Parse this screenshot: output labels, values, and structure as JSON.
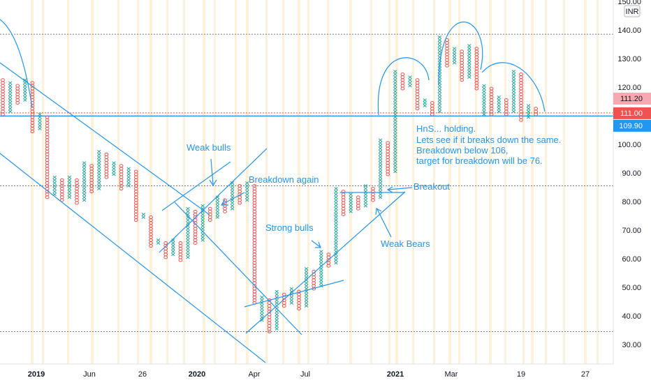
{
  "chart_data": {
    "type": "point-and-figure",
    "currency": "INR",
    "y_axis": {
      "ylim": [
        25,
        153
      ],
      "ticks": [
        30,
        40,
        50,
        60,
        70,
        80,
        90,
        100,
        110,
        120,
        130,
        140,
        150
      ],
      "tick_labels": [
        "30.00",
        "40.00",
        "50.00",
        "60.00",
        "70.00",
        "80.00",
        "90.00",
        "100.00",
        "110.00",
        "120.00",
        "130.00",
        "140.00",
        "150.00"
      ]
    },
    "x_axis": {
      "ticks": [
        {
          "label": "2019",
          "bold": true
        },
        {
          "label": "Jun",
          "bold": false
        },
        {
          "label": "26",
          "bold": false
        },
        {
          "label": "2020",
          "bold": true
        },
        {
          "label": "Apr",
          "bold": false
        },
        {
          "label": "Jul",
          "bold": false
        },
        {
          "label": "2021",
          "bold": true
        },
        {
          "label": "Mar",
          "bold": false
        },
        {
          "label": "19",
          "bold": false
        },
        {
          "label": "27",
          "bold": false
        }
      ]
    },
    "price_tags": [
      {
        "label": "111.20",
        "value": 111.2,
        "color": "#f7a8b0",
        "text_color": "#131722"
      },
      {
        "label": "111.00",
        "value": 111.0,
        "color": "#ef5350",
        "text_color": "#ffffff"
      },
      {
        "label": "109.90",
        "value": 109.9,
        "color": "#2196f3",
        "text_color": "#ffffff"
      }
    ],
    "horizontal_levels": [
      {
        "value": 138.5,
        "style": "dotted",
        "color": "#787b86"
      },
      {
        "value": 85.5,
        "style": "dotted",
        "color": "#787b86"
      },
      {
        "value": 34.5,
        "style": "dotted",
        "color": "#787b86"
      },
      {
        "value": 111.0,
        "style": "dotted",
        "color": "#ef5350"
      },
      {
        "value": 109.9,
        "style": "solid",
        "color": "#2196f3"
      }
    ],
    "columns": [
      {
        "type": "O",
        "high": 122,
        "low": 110
      },
      {
        "type": "X",
        "high": 121,
        "low": 111
      },
      {
        "type": "O",
        "high": 120,
        "low": 114
      },
      {
        "type": "X",
        "high": 122,
        "low": 115
      },
      {
        "type": "O",
        "high": 121,
        "low": 104
      },
      {
        "type": "X",
        "high": 110,
        "low": 105
      },
      {
        "type": "O",
        "high": 109,
        "low": 81
      },
      {
        "type": "X",
        "high": 88,
        "low": 82
      },
      {
        "type": "O",
        "high": 87,
        "low": 80
      },
      {
        "type": "X",
        "high": 88,
        "low": 81
      },
      {
        "type": "O",
        "high": 87,
        "low": 79
      },
      {
        "type": "X",
        "high": 93,
        "low": 80
      },
      {
        "type": "O",
        "high": 92,
        "low": 83
      },
      {
        "type": "X",
        "high": 97,
        "low": 84
      },
      {
        "type": "O",
        "high": 96,
        "low": 88
      },
      {
        "type": "X",
        "high": 93,
        "low": 89
      },
      {
        "type": "O",
        "high": 92,
        "low": 84
      },
      {
        "type": "X",
        "high": 91,
        "low": 85
      },
      {
        "type": "O",
        "high": 90,
        "low": 73
      },
      {
        "type": "X",
        "high": 75,
        "low": 74
      },
      {
        "type": "O",
        "high": 74,
        "low": 64
      },
      {
        "type": "X",
        "high": 66,
        "low": 65
      },
      {
        "type": "O",
        "high": 65,
        "low": 60
      },
      {
        "type": "X",
        "high": 66,
        "low": 61
      },
      {
        "type": "O",
        "high": 65,
        "low": 59
      },
      {
        "type": "X",
        "high": 77,
        "low": 60
      },
      {
        "type": "O",
        "high": 76,
        "low": 65
      },
      {
        "type": "X",
        "high": 78,
        "low": 66
      },
      {
        "type": "O",
        "high": 77,
        "low": 73
      },
      {
        "type": "X",
        "high": 81,
        "low": 74
      },
      {
        "type": "O",
        "high": 80,
        "low": 76
      },
      {
        "type": "X",
        "high": 86,
        "low": 77
      },
      {
        "type": "O",
        "high": 85,
        "low": 79
      },
      {
        "type": "X",
        "high": 86,
        "low": 80
      },
      {
        "type": "O",
        "high": 85,
        "low": 44
      },
      {
        "type": "X",
        "high": 46,
        "low": 38
      },
      {
        "type": "O",
        "high": 45,
        "low": 34
      },
      {
        "type": "X",
        "high": 48,
        "low": 35
      },
      {
        "type": "O",
        "high": 47,
        "low": 43
      },
      {
        "type": "X",
        "high": 49,
        "low": 44
      },
      {
        "type": "O",
        "high": 48,
        "low": 42
      },
      {
        "type": "X",
        "high": 56,
        "low": 43
      },
      {
        "type": "O",
        "high": 55,
        "low": 49
      },
      {
        "type": "X",
        "high": 62,
        "low": 50
      },
      {
        "type": "O",
        "high": 61,
        "low": 57
      },
      {
        "type": "X",
        "high": 84,
        "low": 58
      },
      {
        "type": "O",
        "high": 83,
        "low": 75
      },
      {
        "type": "X",
        "high": 82,
        "low": 76
      },
      {
        "type": "O",
        "high": 81,
        "low": 77
      },
      {
        "type": "X",
        "high": 85,
        "low": 78
      },
      {
        "type": "O",
        "high": 84,
        "low": 80
      },
      {
        "type": "X",
        "high": 101,
        "low": 81
      },
      {
        "type": "O",
        "high": 100,
        "low": 89
      },
      {
        "type": "X",
        "high": 125,
        "low": 90
      },
      {
        "type": "O",
        "high": 124,
        "low": 119
      },
      {
        "type": "X",
        "high": 123,
        "low": 120
      },
      {
        "type": "O",
        "high": 122,
        "low": 112
      },
      {
        "type": "X",
        "high": 115,
        "low": 113
      },
      {
        "type": "O",
        "high": 114,
        "low": 110
      },
      {
        "type": "X",
        "high": 137,
        "low": 111
      },
      {
        "type": "O",
        "high": 136,
        "low": 127
      },
      {
        "type": "X",
        "high": 133,
        "low": 128
      },
      {
        "type": "O",
        "high": 132,
        "low": 122
      },
      {
        "type": "X",
        "high": 134,
        "low": 123
      },
      {
        "type": "O",
        "high": 133,
        "low": 119
      },
      {
        "type": "X",
        "high": 120,
        "low": 110
      },
      {
        "type": "O",
        "high": 119,
        "low": 110
      },
      {
        "type": "X",
        "high": 116,
        "low": 111
      },
      {
        "type": "O",
        "high": 115,
        "low": 110
      },
      {
        "type": "X",
        "high": 125,
        "low": 111
      },
      {
        "type": "O",
        "high": 124,
        "low": 108
      },
      {
        "type": "X",
        "high": 113,
        "low": 109
      },
      {
        "type": "O",
        "high": 112,
        "low": 110
      }
    ],
    "annotations": [
      {
        "id": "weak-bulls",
        "lines": [
          "Weak bulls"
        ]
      },
      {
        "id": "breakdown-again",
        "lines": [
          "Breakdown again"
        ]
      },
      {
        "id": "breakout",
        "lines": [
          "Breakout"
        ]
      },
      {
        "id": "strong-bulls",
        "lines": [
          "Strong bulls"
        ]
      },
      {
        "id": "weak-bears",
        "lines": [
          "Weak Bears"
        ]
      },
      {
        "id": "hns-note",
        "lines": [
          "HnS... holding.",
          "Lets see if it breaks down the same.",
          "Breakdown below 106,",
          "target for breakdown will be 76."
        ]
      }
    ],
    "colors": {
      "x_mark": "#26a69a",
      "o_mark": "#ef5350",
      "drawing": "#2196f3",
      "band": "#fdf2d9"
    }
  }
}
